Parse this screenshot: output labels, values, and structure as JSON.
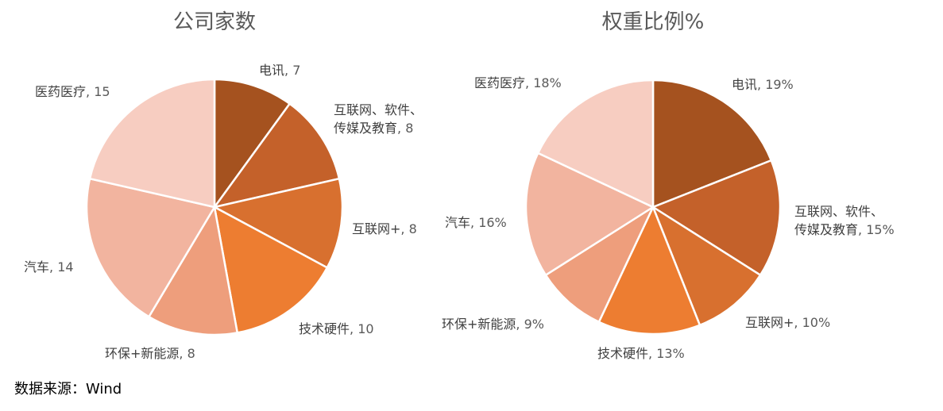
{
  "chart_data": [
    {
      "type": "pie",
      "title": "公司家数",
      "categories": [
        "电讯",
        "互联网、软件、传媒及教育",
        "互联网+",
        "技术硬件",
        "环保+新能源",
        "汽车",
        "医药医疗"
      ],
      "values": [
        7,
        8,
        8,
        10,
        8,
        14,
        15
      ],
      "value_labels": [
        "7",
        "8",
        "8",
        "10",
        "8",
        "14",
        "15"
      ],
      "label_lines": [
        [
          "电讯"
        ],
        [
          "互联网、软件、",
          "传媒及教育"
        ],
        [
          "互联网+"
        ],
        [
          "技术硬件"
        ],
        [
          "环保+新能源"
        ],
        [
          "汽车"
        ],
        [
          "医药医疗"
        ]
      ],
      "colors": [
        "#A5521F",
        "#C4612A",
        "#D8702F",
        "#ED7D31",
        "#EE9E7C",
        "#F2B49F",
        "#F7CDC1"
      ],
      "start_angle_deg": 0,
      "direction": "clockwise",
      "legend": "none"
    },
    {
      "type": "pie",
      "title": "权重比例%",
      "categories": [
        "电讯",
        "互联网、软件、传媒及教育",
        "互联网+",
        "技术硬件",
        "环保+新能源",
        "汽车",
        "医药医疗"
      ],
      "values": [
        19,
        15,
        10,
        13,
        9,
        16,
        18
      ],
      "value_labels": [
        "19%",
        "15%",
        "10%",
        "13%",
        "9%",
        "16%",
        "18%"
      ],
      "label_lines": [
        [
          "电讯"
        ],
        [
          "互联网、软件、",
          "传媒及教育"
        ],
        [
          "互联网+"
        ],
        [
          "技术硬件"
        ],
        [
          "环保+新能源"
        ],
        [
          "汽车"
        ],
        [
          "医药医疗"
        ]
      ],
      "colors": [
        "#A5521F",
        "#C4612A",
        "#D8702F",
        "#ED7D31",
        "#EE9E7C",
        "#F2B49F",
        "#F7CDC1"
      ],
      "start_angle_deg": 0,
      "direction": "clockwise",
      "legend": "none"
    }
  ],
  "source_note": "数据来源：Wind"
}
